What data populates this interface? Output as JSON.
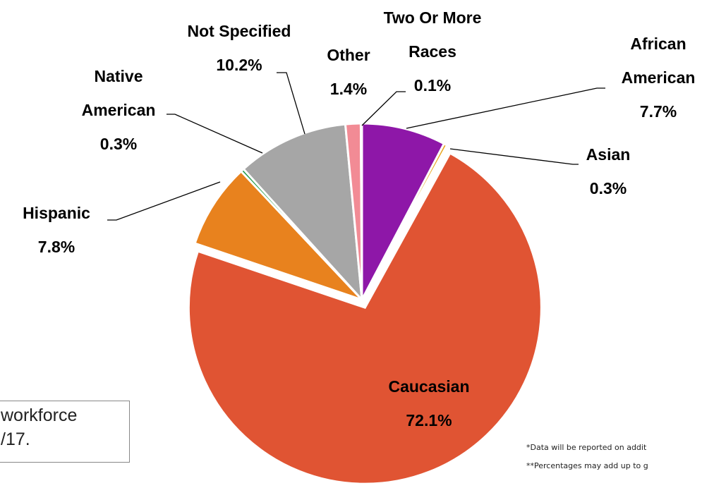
{
  "chart_data": {
    "type": "pie",
    "slices": [
      {
        "label_lines": [
          "African",
          "American"
        ],
        "value": 7.7,
        "value_label": "7.7%",
        "color": "#8e17a8"
      },
      {
        "label_lines": [
          "Asian"
        ],
        "value": 0.3,
        "value_label": "0.3%",
        "color": "#e8a51d"
      },
      {
        "label_lines": [
          "Caucasian"
        ],
        "value": 72.1,
        "value_label": "72.1%",
        "color": "#e05433"
      },
      {
        "label_lines": [
          "Hispanic"
        ],
        "value": 7.8,
        "value_label": "7.8%",
        "color": "#e8821e"
      },
      {
        "label_lines": [
          "Native",
          "American"
        ],
        "value": 0.3,
        "value_label": "0.3%",
        "color": "#1e9a47"
      },
      {
        "label_lines": [
          "Not Specified"
        ],
        "value": 10.2,
        "value_label": "10.2%",
        "color": "#a6a6a6"
      },
      {
        "label_lines": [
          "Other"
        ],
        "value": 1.4,
        "value_label": "1.4%",
        "color": "#f28b95"
      },
      {
        "label_lines": [
          "Two Or More",
          "Races"
        ],
        "value": 0.1,
        "value_label": "0.1%",
        "color": "#e05433"
      }
    ],
    "exploded_slices": [
      "Caucasian"
    ]
  },
  "caption": {
    "line1": " workforce",
    "line2": "/17."
  },
  "footnotes": {
    "line1": "*Data will be reported on addit",
    "line2": "**Percentages may add up to g"
  }
}
